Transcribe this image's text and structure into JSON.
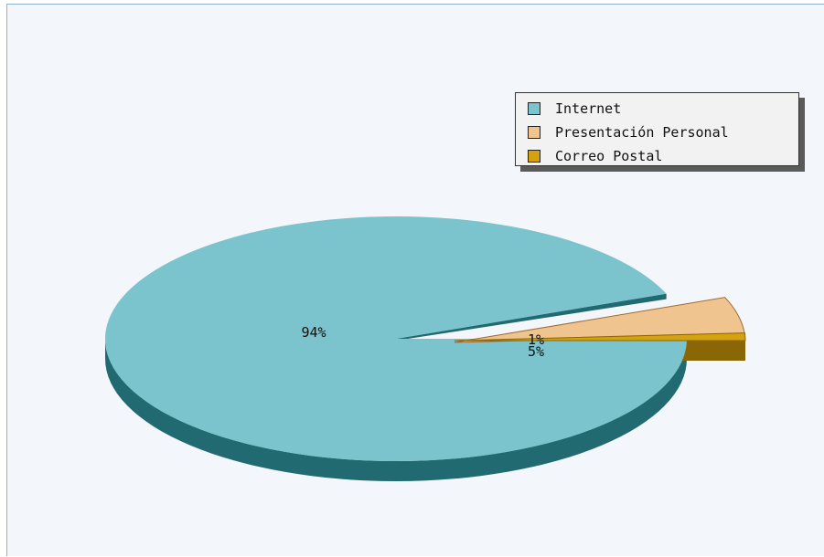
{
  "chart_data": {
    "type": "pie",
    "variant": "3d-exploded",
    "title": "",
    "legend_position": "top-right",
    "slices": [
      {
        "name": "Internet",
        "label": "94%",
        "value": 94,
        "color": "#7bc3cd",
        "side_color": "#226a72"
      },
      {
        "name": "Presentación Personal",
        "label": "5%",
        "value": 5,
        "color": "#efc48e",
        "side_color": "#9c6b35"
      },
      {
        "name": "Correo Postal",
        "label": "1%",
        "value": 1,
        "color": "#d4a20f",
        "side_color": "#8a6606"
      }
    ]
  },
  "legend": {
    "items": [
      {
        "label": "Internet",
        "color": "#7bc3cd"
      },
      {
        "label": "Presentación Personal",
        "color": "#efc48e"
      },
      {
        "label": "Correo Postal",
        "color": "#d4a20f"
      }
    ]
  }
}
